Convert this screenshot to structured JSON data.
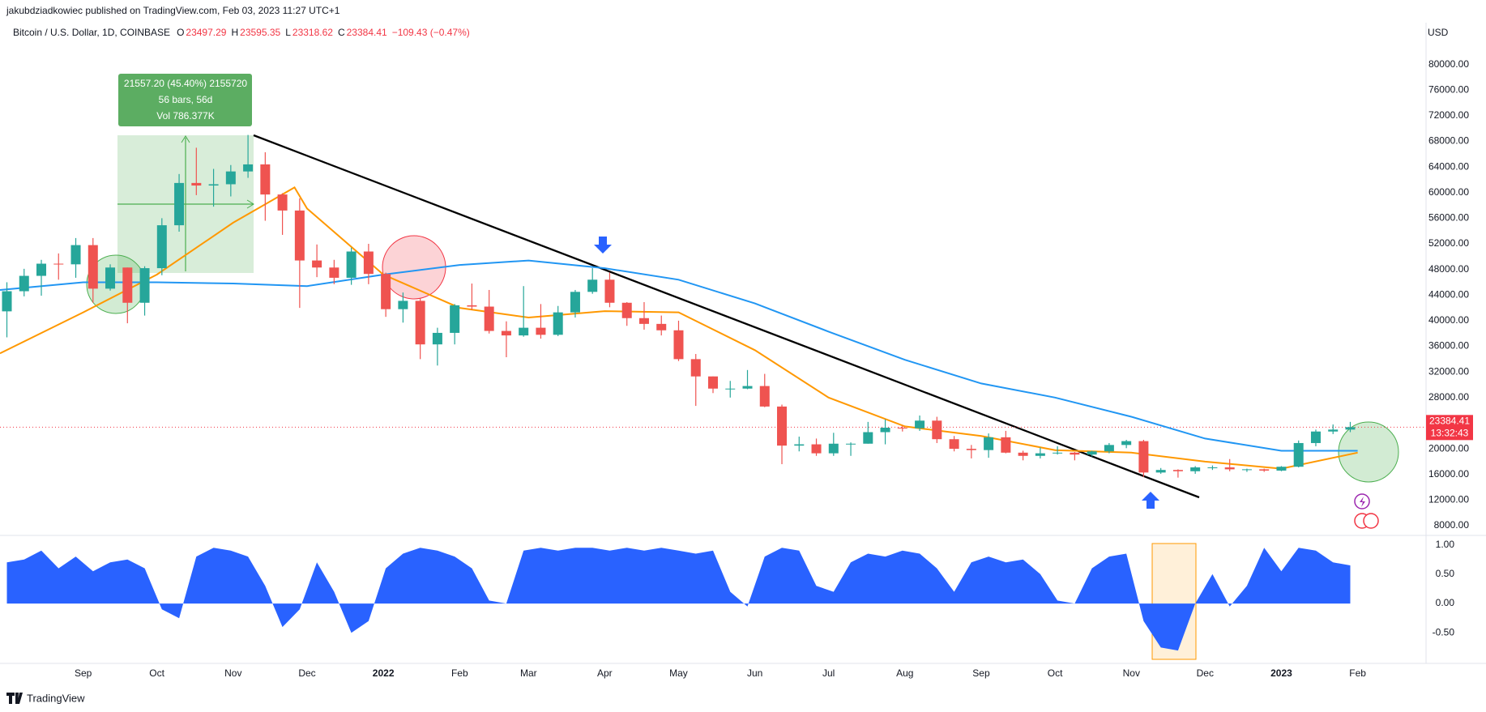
{
  "header": {
    "published": "jakubdziadkowiec published on TradingView.com, Feb 03, 2023 11:27 UTC+1",
    "symbol": "Bitcoin / U.S. Dollar, 1D, COINBASE",
    "ohlc": [
      {
        "label": "O",
        "value": 23497.29
      },
      {
        "label": "H",
        "value": 23595.35
      },
      {
        "label": "L",
        "value": 23318.62
      },
      {
        "label": "C",
        "value": 23384.41
      }
    ],
    "change": "−109.43 (−0.47%)"
  },
  "currency": "USD",
  "footer": "TradingView",
  "chart_data": [
    {
      "type": "candlestick",
      "up_color": "#26a69a",
      "down_color": "#ef5350",
      "xlim": [
        -0.4,
        82.4
      ],
      "xticks": [
        {
          "value": 4.43,
          "label": "Sep"
        },
        {
          "value": 8.71,
          "label": "Oct"
        },
        {
          "value": 13.14,
          "label": "Nov"
        },
        {
          "value": 17.43,
          "label": "Dec"
        },
        {
          "value": 21.86,
          "label": "2022"
        },
        {
          "value": 26.29,
          "label": "Feb"
        },
        {
          "value": 30.29,
          "label": "Mar"
        },
        {
          "value": 34.71,
          "label": "Apr"
        },
        {
          "value": 39,
          "label": "May"
        },
        {
          "value": 43.43,
          "label": "Jun"
        },
        {
          "value": 47.71,
          "label": "Jul"
        },
        {
          "value": 52.14,
          "label": "Aug"
        },
        {
          "value": 56.57,
          "label": "Sep"
        },
        {
          "value": 60.86,
          "label": "Oct"
        },
        {
          "value": 65.29,
          "label": "Nov"
        },
        {
          "value": 69.57,
          "label": "Dec"
        },
        {
          "value": 74,
          "label": "2023"
        },
        {
          "value": 78.43,
          "label": "Feb"
        }
      ],
      "ylim": [
        6480,
        85890
      ],
      "yticks": [
        {
          "value": 8000,
          "label": "8000.00"
        },
        {
          "value": 12000,
          "label": "12000.00"
        },
        {
          "value": 16000,
          "label": "16000.00"
        },
        {
          "value": 20000,
          "label": "20000.00"
        },
        {
          "value": 24000,
          "label": "24000.00"
        },
        {
          "value": 28000,
          "label": "28000.00"
        },
        {
          "value": 32000,
          "label": "32000.00"
        },
        {
          "value": 36000,
          "label": "36000.00"
        },
        {
          "value": 40000,
          "label": "40000.00"
        },
        {
          "value": 44000,
          "label": "44000.00"
        },
        {
          "value": 48000,
          "label": "48000.00"
        },
        {
          "value": 52000,
          "label": "52000.00"
        },
        {
          "value": 56000,
          "label": "56000.00"
        },
        {
          "value": 60000,
          "label": "60000.00"
        },
        {
          "value": 64000,
          "label": "64000.00"
        },
        {
          "value": 68000,
          "label": "68000.00"
        },
        {
          "value": 72000,
          "label": "72000.00"
        },
        {
          "value": 76000,
          "label": "76000.00"
        },
        {
          "value": 80000,
          "label": "80000.00"
        }
      ],
      "candles": [
        [
          41460,
          46000,
          37400,
          44600
        ],
        [
          44600,
          48100,
          43800,
          47000
        ],
        [
          47000,
          49500,
          43900,
          48900
        ],
        [
          48900,
          50500,
          46400,
          48800
        ],
        [
          48800,
          52900,
          46700,
          51800
        ],
        [
          51800,
          52900,
          42800,
          45000
        ],
        [
          45000,
          48800,
          44700,
          48300
        ],
        [
          48300,
          48300,
          39600,
          42800
        ],
        [
          42800,
          48500,
          40800,
          48200
        ],
        [
          48200,
          56000,
          47100,
          54900
        ],
        [
          54900,
          62900,
          53900,
          61500
        ],
        [
          61500,
          67000,
          59600,
          61100
        ],
        [
          61100,
          63700,
          57800,
          61300
        ],
        [
          61300,
          64300,
          59400,
          63300
        ],
        [
          63300,
          69000,
          62300,
          64400
        ],
        [
          64400,
          66300,
          55600,
          59700
        ],
        [
          59700,
          59900,
          53400,
          57200
        ],
        [
          57200,
          59100,
          42000,
          49400
        ],
        [
          49400,
          51900,
          46800,
          48300
        ],
        [
          48300,
          49500,
          45700,
          46700
        ],
        [
          46700,
          51400,
          45600,
          50800
        ],
        [
          50800,
          52000,
          45700,
          47300
        ],
        [
          47300,
          47500,
          40600,
          41800
        ],
        [
          41800,
          44400,
          39700,
          43100
        ],
        [
          43100,
          43500,
          34000,
          36300
        ],
        [
          36300,
          38900,
          33000,
          38100
        ],
        [
          38100,
          42600,
          36300,
          42400
        ],
        [
          42400,
          45800,
          41700,
          42200
        ],
        [
          42200,
          44800,
          38000,
          38400
        ],
        [
          38400,
          39900,
          34300,
          37700
        ],
        [
          37700,
          45400,
          37500,
          38900
        ],
        [
          38900,
          42600,
          37200,
          37800
        ],
        [
          37800,
          42300,
          37600,
          41300
        ],
        [
          41300,
          44800,
          40500,
          44500
        ],
        [
          44500,
          48200,
          44200,
          46400
        ],
        [
          46400,
          47500,
          42100,
          42800
        ],
        [
          42800,
          42900,
          39200,
          40400
        ],
        [
          40400,
          42900,
          38600,
          39500
        ],
        [
          39500,
          40800,
          37700,
          38500
        ],
        [
          38500,
          40000,
          33700,
          34000
        ],
        [
          34000,
          34800,
          26700,
          31300
        ],
        [
          31300,
          31300,
          28700,
          29400
        ],
        [
          29400,
          30600,
          28000,
          29400
        ],
        [
          29400,
          32300,
          29300,
          29800
        ],
        [
          29800,
          31700,
          26500,
          26600
        ],
        [
          26600,
          26900,
          17600,
          20500
        ],
        [
          20500,
          21900,
          19600,
          20700
        ],
        [
          20700,
          21600,
          18900,
          19300
        ],
        [
          19300,
          22500,
          18900,
          20800
        ],
        [
          20800,
          21000,
          18900,
          20800
        ],
        [
          20800,
          24200,
          20800,
          22600
        ],
        [
          22600,
          24600,
          20700,
          23300
        ],
        [
          23300,
          23600,
          22700,
          23200
        ],
        [
          23200,
          25200,
          22800,
          24400
        ],
        [
          24400,
          25000,
          20900,
          21500
        ],
        [
          21500,
          22000,
          19600,
          20000
        ],
        [
          20000,
          20600,
          18500,
          19800
        ],
        [
          19800,
          22400,
          18600,
          21800
        ],
        [
          21800,
          22800,
          19300,
          19400
        ],
        [
          19400,
          19700,
          18200,
          18900
        ],
        [
          18900,
          20200,
          18500,
          19300
        ],
        [
          19300,
          20400,
          19100,
          19400
        ],
        [
          19400,
          19500,
          18200,
          19100
        ],
        [
          19100,
          19700,
          18800,
          19600
        ],
        [
          19600,
          20900,
          19300,
          20600
        ],
        [
          20600,
          21400,
          20100,
          21200
        ],
        [
          21200,
          21400,
          15600,
          16300
        ],
        [
          16300,
          17000,
          16100,
          16700
        ],
        [
          16700,
          16800,
          15500,
          16500
        ],
        [
          16500,
          17300,
          16100,
          17100
        ],
        [
          17100,
          17400,
          16700,
          17100
        ],
        [
          17100,
          18400,
          16500,
          16800
        ],
        [
          16800,
          16900,
          16400,
          16800
        ],
        [
          16800,
          16900,
          16400,
          16600
        ],
        [
          16600,
          17300,
          16500,
          17200
        ],
        [
          17200,
          21300,
          17100,
          20900
        ],
        [
          20900,
          23000,
          20400,
          22700
        ],
        [
          22700,
          23800,
          22300,
          23000
        ],
        [
          23000,
          24200,
          22600,
          23384.41
        ]
      ],
      "lines": [
        {
          "color": "#2196f3",
          "x": [
            -0.4,
            4.43,
            8.71,
            13.14,
            17.43,
            21.86,
            26.29,
            30.29,
            34.71,
            39,
            43.43,
            47.71,
            52.14,
            56.57,
            60.86,
            65.29,
            69.57,
            74,
            78.43
          ],
          "values": [
            44800,
            46000,
            46000,
            45800,
            45400,
            47200,
            48700,
            49400,
            48200,
            46400,
            42700,
            38300,
            33900,
            30200,
            28000,
            25000,
            21600,
            19700,
            19700
          ]
        },
        {
          "color": "#ff9800",
          "x": [
            -0.4,
            4.43,
            8.71,
            13.14,
            16.7,
            17.43,
            21.86,
            26.29,
            30.29,
            34.71,
            39,
            43.43,
            47.71,
            52.14,
            56.57,
            60.86,
            65.29,
            69.57,
            74,
            78.43
          ],
          "values": [
            34900,
            41300,
            47200,
            55300,
            60800,
            57500,
            47200,
            42000,
            40500,
            41500,
            41300,
            35400,
            28000,
            23500,
            22000,
            19800,
            19400,
            18000,
            16900,
            19400
          ]
        }
      ],
      "last_price": 23384.41,
      "countdown": "13:32:43",
      "measure": {
        "line1": "21557.20 (45.40%) 2155720",
        "line2": "56 bars, 56d",
        "line3": "Vol 786.377K"
      }
    },
    {
      "type": "area",
      "color": "#2962ff",
      "ylim": [
        -1.02,
        1.16
      ],
      "yticks": [
        {
          "value": 1,
          "label": "1.00"
        },
        {
          "value": 0.5,
          "label": "0.50"
        },
        {
          "value": 0,
          "label": "0.00"
        },
        {
          "value": -0.5,
          "label": "-0.50"
        }
      ],
      "values": [
        0.7,
        0.75,
        0.9,
        0.6,
        0.8,
        0.55,
        0.7,
        0.75,
        0.6,
        -0.1,
        -0.25,
        0.8,
        0.95,
        0.9,
        0.8,
        0.3,
        -0.4,
        -0.1,
        0.7,
        0.2,
        -0.5,
        -0.3,
        0.6,
        0.85,
        0.95,
        0.9,
        0.8,
        0.6,
        0.05,
        0,
        0.9,
        0.95,
        0.9,
        0.95,
        0.95,
        0.9,
        0.95,
        0.9,
        0.95,
        0.9,
        0.85,
        0.9,
        0.2,
        -0.05,
        0.8,
        0.95,
        0.9,
        0.3,
        0.2,
        0.7,
        0.85,
        0.8,
        0.9,
        0.85,
        0.6,
        0.2,
        0.7,
        0.8,
        0.7,
        0.75,
        0.5,
        0.05,
        0,
        0.6,
        0.8,
        0.85,
        -0.3,
        -0.75,
        -0.8,
        0,
        0.5,
        -0.05,
        0.3,
        0.95,
        0.55,
        0.95,
        0.9,
        0.7,
        0.65
      ]
    }
  ]
}
